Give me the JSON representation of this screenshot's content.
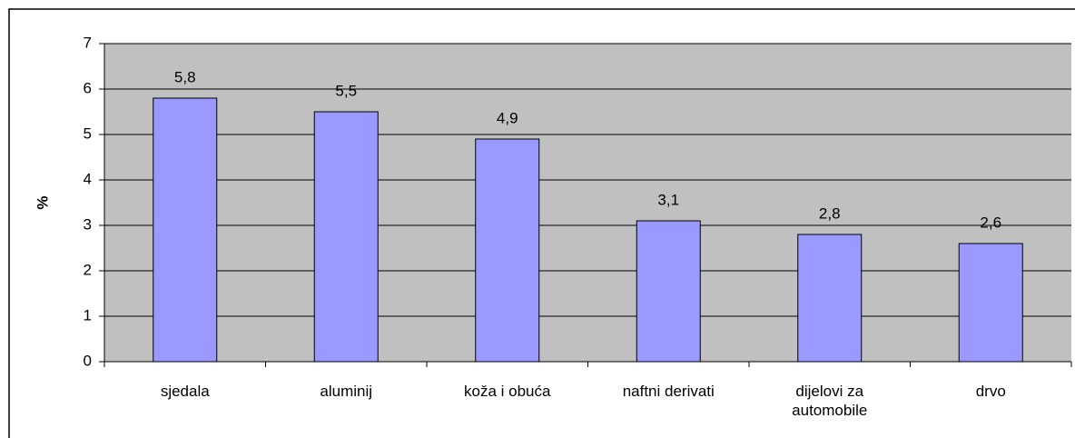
{
  "chart_data": {
    "type": "bar",
    "y_label": "%",
    "categories": [
      "sjedala",
      "aluminij",
      "koža i obuća",
      "naftni derivati",
      "dijelovi za automobile",
      "drvo"
    ],
    "values": [
      5.8,
      5.5,
      4.9,
      3.1,
      2.8,
      2.6
    ],
    "value_labels": [
      "5,8",
      "5,5",
      "4,9",
      "3,1",
      "2,8",
      "2,6"
    ],
    "color": "#9999ff",
    "plot_background": "#c0c0c0",
    "ylim": [
      0,
      7
    ],
    "yticks": [
      0,
      1,
      2,
      3,
      4,
      5,
      6,
      7
    ],
    "grid": true
  }
}
